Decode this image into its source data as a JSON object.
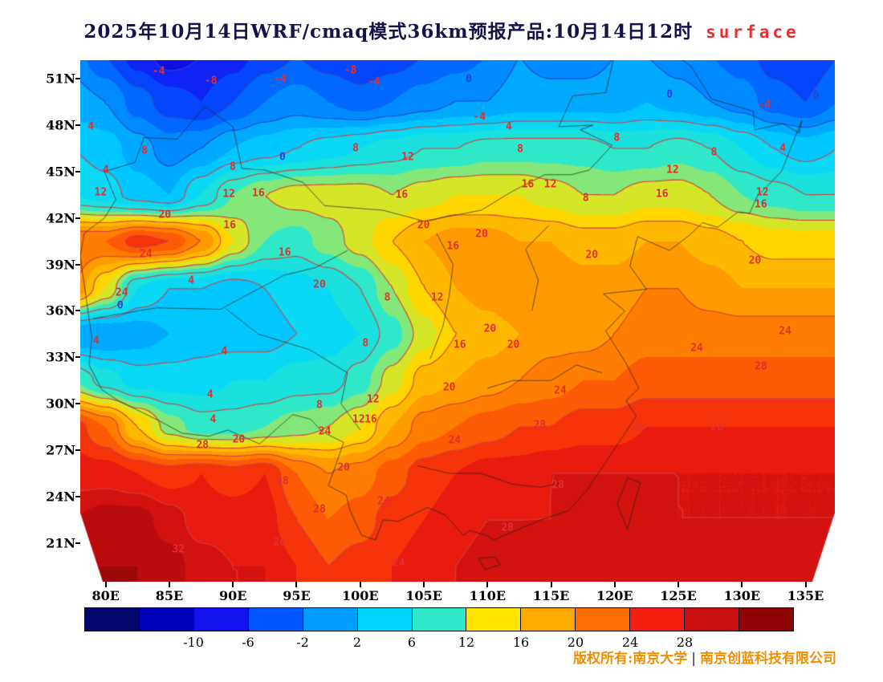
{
  "title": {
    "main": "2025年10月14日WRF/cmaq模式36km预报产品:10月14日12时",
    "suffix": "surface"
  },
  "axes": {
    "lon_range": [
      78.0,
      137.3
    ],
    "lat_range": [
      18.5,
      52.2
    ],
    "x_ticks": [
      {
        "label": "80E",
        "lon": 80
      },
      {
        "label": "85E",
        "lon": 85
      },
      {
        "label": "90E",
        "lon": 90
      },
      {
        "label": "95E",
        "lon": 95
      },
      {
        "label": "100E",
        "lon": 100
      },
      {
        "label": "105E",
        "lon": 105
      },
      {
        "label": "110E",
        "lon": 110
      },
      {
        "label": "115E",
        "lon": 115
      },
      {
        "label": "120E",
        "lon": 120
      },
      {
        "label": "125E",
        "lon": 125
      },
      {
        "label": "130E",
        "lon": 130
      },
      {
        "label": "135E",
        "lon": 135
      }
    ],
    "y_ticks": [
      {
        "label": "51N",
        "lat": 51
      },
      {
        "label": "48N",
        "lat": 48
      },
      {
        "label": "45N",
        "lat": 45
      },
      {
        "label": "42N",
        "lat": 42
      },
      {
        "label": "39N",
        "lat": 39
      },
      {
        "label": "36N",
        "lat": 36
      },
      {
        "label": "33N",
        "lat": 33
      },
      {
        "label": "30N",
        "lat": 30
      },
      {
        "label": "27N",
        "lat": 27
      },
      {
        "label": "24N",
        "lat": 24
      },
      {
        "label": "21N",
        "lat": 21
      }
    ]
  },
  "chart_data": {
    "type": "heatmap",
    "variable": "surface temperature",
    "unit": "degC",
    "lons": [
      77.5,
      80,
      82.5,
      85,
      87.5,
      90,
      92.5,
      95,
      97.5,
      100,
      102.5,
      105,
      107.5,
      110,
      112.5,
      115,
      117.5,
      120,
      122.5,
      125,
      127.5,
      130,
      132.5,
      135,
      137.5
    ],
    "lats": [
      52.5,
      49.5,
      46.5,
      43.5,
      40.5,
      37.5,
      34.5,
      31.5,
      28.5,
      25.5,
      22.5,
      19.5
    ],
    "temps": [
      [
        -1,
        -4,
        -7,
        -9,
        -8,
        -7,
        -5,
        -4,
        -5,
        -6,
        -5,
        -4,
        -3,
        -2,
        0,
        -1,
        -1,
        0,
        0,
        -1,
        -2,
        -3,
        -5,
        -6,
        -4
      ],
      [
        1,
        0,
        -3,
        -5,
        -6,
        -4,
        -2,
        -1,
        -2,
        -3,
        -2,
        -1,
        0,
        0,
        1,
        1,
        1,
        1,
        2,
        1,
        0,
        -1,
        -3,
        -4,
        -2
      ],
      [
        4,
        3,
        1,
        -1,
        0,
        2,
        3,
        4,
        5,
        6,
        7,
        8,
        8,
        9,
        9,
        9,
        9,
        8,
        8,
        9,
        8,
        6,
        4,
        3,
        4
      ],
      [
        6,
        5,
        3,
        2,
        6,
        10,
        12,
        13,
        13,
        13,
        12,
        13,
        14,
        14,
        14,
        13,
        12,
        12,
        13,
        13,
        12,
        10,
        9,
        8,
        8
      ],
      [
        22,
        22,
        25,
        24,
        20,
        14,
        10,
        9,
        11,
        13,
        16,
        18,
        19,
        19,
        18,
        18,
        17,
        17,
        18,
        18,
        17,
        16,
        15,
        15,
        15
      ],
      [
        20,
        14,
        6,
        4,
        4,
        3,
        4,
        5,
        6,
        8,
        12,
        16,
        18,
        19,
        20,
        20,
        19,
        19,
        20,
        20,
        19,
        18,
        18,
        18,
        18
      ],
      [
        0,
        0,
        1,
        2,
        3,
        3,
        3,
        4,
        5,
        6,
        9,
        13,
        16,
        17,
        18,
        19,
        19,
        20,
        21,
        21,
        21,
        21,
        21,
        21,
        21
      ],
      [
        10,
        7,
        5,
        5,
        5,
        6,
        6,
        7,
        7,
        9,
        13,
        17,
        18,
        19,
        20,
        21,
        22,
        22,
        23,
        23,
        23,
        23,
        23,
        23,
        23
      ],
      [
        25,
        22,
        16,
        11,
        9,
        9,
        10,
        11,
        12,
        14,
        18,
        21,
        22,
        23,
        24,
        24,
        25,
        25,
        26,
        26,
        26,
        26,
        26,
        26,
        26
      ],
      [
        27,
        27,
        26,
        25,
        26,
        25,
        26,
        22,
        20,
        21,
        23,
        25,
        26,
        27,
        27,
        28,
        28,
        28,
        28,
        28,
        28,
        28,
        28,
        28,
        28
      ],
      [
        30,
        31,
        31,
        29,
        27,
        27,
        27,
        24,
        22,
        23,
        25,
        26,
        27,
        28,
        28,
        28,
        29,
        29,
        29,
        28,
        28,
        28,
        28,
        28,
        28
      ],
      [
        32,
        32,
        32,
        31,
        29,
        28,
        28,
        26,
        24,
        25,
        26,
        27,
        28,
        29,
        29,
        29,
        29,
        29,
        29,
        29,
        29,
        29,
        29,
        29,
        29
      ]
    ],
    "contour_levels_red": [
      4,
      8,
      12,
      16,
      20,
      24,
      28,
      32
    ],
    "contour_levels_blue": [
      -8,
      -4,
      0
    ],
    "contour_labels": [
      [
        "-4",
        0.104,
        0.022
      ],
      [
        "-8",
        0.173,
        0.04
      ],
      [
        "-4",
        0.265,
        0.037
      ],
      [
        "-8",
        0.358,
        0.02
      ],
      [
        "-4",
        0.389,
        0.042
      ],
      [
        "0",
        0.515,
        0.037
      ],
      [
        "0",
        0.781,
        0.066
      ],
      [
        "0",
        0.975,
        0.069
      ],
      [
        "-4",
        0.907,
        0.086
      ],
      [
        "-4",
        0.529,
        0.109
      ],
      [
        "4",
        0.014,
        0.128
      ],
      [
        "4",
        0.568,
        0.128
      ],
      [
        "8",
        0.085,
        0.174
      ],
      [
        "0",
        0.268,
        0.186
      ],
      [
        "8",
        0.365,
        0.169
      ],
      [
        "12",
        0.434,
        0.186
      ],
      [
        "8",
        0.583,
        0.171
      ],
      [
        "8",
        0.711,
        0.149
      ],
      [
        "8",
        0.84,
        0.177
      ],
      [
        "4",
        0.931,
        0.169
      ],
      [
        "4",
        0.034,
        0.211
      ],
      [
        "8",
        0.202,
        0.205
      ],
      [
        "12",
        0.785,
        0.211
      ],
      [
        "12",
        0.027,
        0.254
      ],
      [
        "12",
        0.197,
        0.257
      ],
      [
        "16",
        0.236,
        0.255
      ],
      [
        "16",
        0.426,
        0.258
      ],
      [
        "16",
        0.593,
        0.238
      ],
      [
        "12",
        0.623,
        0.238
      ],
      [
        "8",
        0.67,
        0.265
      ],
      [
        "16",
        0.771,
        0.257
      ],
      [
        "12",
        0.904,
        0.254
      ],
      [
        "16",
        0.902,
        0.277
      ],
      [
        "20",
        0.112,
        0.297
      ],
      [
        "16",
        0.198,
        0.317
      ],
      [
        "20",
        0.455,
        0.317
      ],
      [
        "20",
        0.532,
        0.334
      ],
      [
        "16",
        0.494,
        0.357
      ],
      [
        "20",
        0.678,
        0.374
      ],
      [
        "20",
        0.894,
        0.385
      ],
      [
        "24",
        0.087,
        0.372
      ],
      [
        "16",
        0.271,
        0.369
      ],
      [
        "20",
        0.317,
        0.431
      ],
      [
        "4",
        0.147,
        0.423
      ],
      [
        "24",
        0.055,
        0.446
      ],
      [
        "0",
        0.053,
        0.471
      ],
      [
        "8",
        0.407,
        0.455
      ],
      [
        "12",
        0.473,
        0.455
      ],
      [
        "20",
        0.543,
        0.515
      ],
      [
        "4",
        0.021,
        0.538
      ],
      [
        "4",
        0.191,
        0.558
      ],
      [
        "8",
        0.378,
        0.543
      ],
      [
        "16",
        0.503,
        0.546
      ],
      [
        "20",
        0.574,
        0.546
      ],
      [
        "24",
        0.817,
        0.552
      ],
      [
        "24",
        0.934,
        0.52
      ],
      [
        "28",
        0.902,
        0.588
      ],
      [
        "4",
        0.172,
        0.642
      ],
      [
        "8",
        0.317,
        0.662
      ],
      [
        "12",
        0.388,
        0.651
      ],
      [
        "20",
        0.489,
        0.628
      ],
      [
        "24",
        0.636,
        0.634
      ],
      [
        "4",
        0.176,
        0.689
      ],
      [
        "12",
        0.369,
        0.689
      ],
      [
        "16",
        0.385,
        0.689
      ],
      [
        "24",
        0.324,
        0.712
      ],
      [
        "28",
        0.609,
        0.7
      ],
      [
        "28",
        0.739,
        0.705
      ],
      [
        "28",
        0.844,
        0.705
      ],
      [
        "20",
        0.21,
        0.727
      ],
      [
        "28",
        0.162,
        0.738
      ],
      [
        "24",
        0.496,
        0.729
      ],
      [
        "20",
        0.349,
        0.782
      ],
      [
        "28",
        0.268,
        0.808
      ],
      [
        "28",
        0.633,
        0.815
      ],
      [
        "24",
        0.402,
        0.846
      ],
      [
        "28",
        0.317,
        0.862
      ],
      [
        "28",
        0.566,
        0.897
      ],
      [
        "28",
        0.264,
        0.925
      ],
      [
        "32",
        0.13,
        0.938
      ],
      [
        "24",
        0.422,
        0.965
      ]
    ]
  },
  "geo": {
    "outlines": [
      [
        [
          124.3,
          39.9
        ],
        [
          121.8,
          40.8
        ],
        [
          121.2,
          38.9
        ],
        [
          122.5,
          37.4
        ],
        [
          119.1,
          37.1
        ],
        [
          120.8,
          36.0
        ],
        [
          119.3,
          34.7
        ],
        [
          120.9,
          32.6
        ],
        [
          121.9,
          31.0
        ],
        [
          120.9,
          30.2
        ],
        [
          121.7,
          29.2
        ],
        [
          119.6,
          26.6
        ],
        [
          117.8,
          24.4
        ],
        [
          116.4,
          23.1
        ],
        [
          114.2,
          22.5
        ],
        [
          112.2,
          21.8
        ],
        [
          110.5,
          21.2
        ],
        [
          109.9,
          21.5
        ],
        [
          108.6,
          21.8
        ],
        [
          108.1,
          21.5
        ]
      ],
      [
        [
          134.7,
          48.3
        ],
        [
          134.5,
          47.5
        ],
        [
          133.2,
          48.1
        ],
        [
          131.0,
          47.7
        ],
        [
          130.9,
          48.9
        ],
        [
          127.6,
          49.7
        ],
        [
          126.0,
          51.8
        ],
        [
          123.5,
          53.3
        ],
        [
          120.0,
          52.6
        ],
        [
          119.3,
          50.1
        ],
        [
          116.7,
          49.9
        ],
        [
          115.6,
          47.9
        ],
        [
          118.3,
          48.0
        ],
        [
          117.3,
          47.7
        ],
        [
          119.8,
          46.7
        ],
        [
          118.0,
          45.1
        ],
        [
          116.6,
          44.8
        ],
        [
          114.5,
          44.8
        ],
        [
          111.9,
          43.7
        ],
        [
          109.5,
          42.5
        ],
        [
          105.0,
          41.8
        ],
        [
          101.8,
          42.5
        ],
        [
          97.2,
          42.8
        ],
        [
          95.5,
          44.3
        ],
        [
          92.5,
          45.1
        ],
        [
          90.7,
          45.2
        ],
        [
          90.0,
          47.9
        ],
        [
          87.8,
          49.2
        ],
        [
          85.6,
          47.1
        ],
        [
          83.0,
          47.2
        ],
        [
          82.3,
          45.6
        ],
        [
          79.9,
          45.0
        ],
        [
          80.8,
          43.2
        ],
        [
          79.9,
          42.0
        ],
        [
          78.3,
          41.0
        ]
      ],
      [
        [
          124.3,
          39.9
        ],
        [
          125.9,
          40.9
        ],
        [
          126.9,
          41.7
        ],
        [
          128.1,
          41.4
        ],
        [
          129.7,
          42.4
        ],
        [
          130.6,
          42.3
        ],
        [
          131.2,
          43.4
        ],
        [
          133.1,
          45.0
        ],
        [
          134.7,
          48.3
        ]
      ],
      [
        [
          78.3,
          41.0
        ],
        [
          78.0,
          39.5
        ],
        [
          78.9,
          34.3
        ],
        [
          78.7,
          32.5
        ],
        [
          79.7,
          30.9
        ],
        [
          81.0,
          30.2
        ],
        [
          84.2,
          28.9
        ],
        [
          86.0,
          28.1
        ],
        [
          88.1,
          27.9
        ],
        [
          89.6,
          28.3
        ],
        [
          92.1,
          27.4
        ],
        [
          94.7,
          29.3
        ],
        [
          96.1,
          29.0
        ],
        [
          97.0,
          28.2
        ],
        [
          98.7,
          27.5
        ],
        [
          97.5,
          24.7
        ],
        [
          98.9,
          24.1
        ],
        [
          99.2,
          23.1
        ],
        [
          100.1,
          21.5
        ],
        [
          101.2,
          21.2
        ],
        [
          101.8,
          22.5
        ],
        [
          103.0,
          22.4
        ],
        [
          105.3,
          23.3
        ],
        [
          106.7,
          22.8
        ],
        [
          108.1,
          21.5
        ]
      ],
      [
        [
          79.0,
          35.5
        ],
        [
          84.0,
          36.2
        ],
        [
          89.0,
          36.1
        ],
        [
          94.0,
          38.3
        ],
        [
          96.5,
          38.8
        ],
        [
          99.0,
          39.9
        ]
      ],
      [
        [
          89.5,
          36.1
        ],
        [
          92.0,
          34.5
        ],
        [
          96.0,
          33.5
        ],
        [
          99.0,
          32.0
        ],
        [
          98.5,
          30.0
        ],
        [
          100.0,
          28.3
        ]
      ],
      [
        [
          105.5,
          32.9
        ],
        [
          106.5,
          35.0
        ],
        [
          107.0,
          37.0
        ],
        [
          107.3,
          39.0
        ],
        [
          106.0,
          41.0
        ]
      ],
      [
        [
          113.5,
          36.0
        ],
        [
          114.0,
          38.0
        ],
        [
          113.0,
          40.0
        ],
        [
          114.8,
          41.5
        ]
      ],
      [
        [
          110.0,
          31.0
        ],
        [
          112.0,
          31.5
        ],
        [
          115.0,
          31.5
        ],
        [
          117.0,
          32.5
        ],
        [
          119.0,
          32.0
        ]
      ],
      [
        [
          104.5,
          26.0
        ],
        [
          107.0,
          25.5
        ],
        [
          109.5,
          25.5
        ],
        [
          112.0,
          24.8
        ],
        [
          114.2,
          24.6
        ],
        [
          115.8,
          24.9
        ]
      ]
    ],
    "islands": [
      [
        [
          121.0,
          25.2
        ],
        [
          122.0,
          24.9
        ],
        [
          121.0,
          21.9
        ],
        [
          120.2,
          23.5
        ]
      ],
      [
        [
          109.3,
          20.0
        ],
        [
          110.6,
          20.1
        ],
        [
          111.0,
          19.6
        ],
        [
          109.8,
          19.3
        ]
      ]
    ]
  },
  "colorbar": {
    "colors": [
      "#05056e",
      "#0000b9",
      "#1414f0",
      "#0055ff",
      "#009cff",
      "#00d5ff",
      "#2fe8c8",
      "#ffe400",
      "#ffaa00",
      "#ff6e00",
      "#f21f0f",
      "#c80f0f",
      "#8f0404"
    ],
    "boundaries": [
      -14,
      -10,
      -6,
      -2,
      2,
      6,
      12,
      16,
      20,
      24,
      28,
      32
    ],
    "tick_labels": [
      "-10",
      "-6",
      "-2",
      "2",
      "6",
      "12",
      "16",
      "20",
      "24",
      "28"
    ]
  },
  "credit": {
    "owner": "版权所有:南京大学",
    "separator": "|",
    "company": "南京创蓝科技有限公司"
  }
}
